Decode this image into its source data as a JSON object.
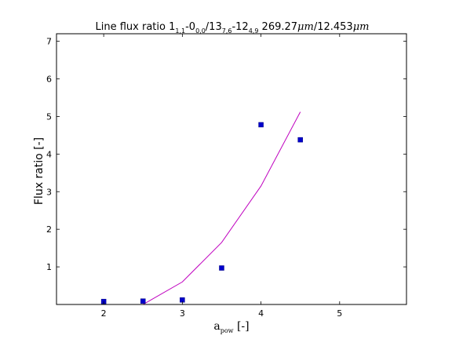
{
  "chart_data": {
    "type": "scatter",
    "title": {
      "prefix": "Line flux ratio 1",
      "sub1": "1,1",
      "mid1": "-0",
      "sub2": "0,0",
      "mid2": "/13",
      "sub3": "7,6",
      "mid3": "-12",
      "sub4": "4,9",
      "wl1_value": " 269.27",
      "wl1_unit": "μm",
      "slash": "/12.453",
      "wl2_unit": "μm"
    },
    "xlabel": {
      "main": "a",
      "sub": "pow",
      "unit": " [-]"
    },
    "ylabel": "Flux ratio [-]",
    "xlim": [
      1.4,
      5.85
    ],
    "ylim": [
      0.0,
      7.2
    ],
    "xticks": [
      2,
      3,
      4,
      5
    ],
    "xtick_labels": [
      "2",
      "3",
      "4",
      "5"
    ],
    "yticks": [
      1,
      2,
      3,
      4,
      5,
      6,
      7
    ],
    "ytick_labels": [
      "1",
      "2",
      "3",
      "4",
      "5",
      "6",
      "7"
    ],
    "grid": false,
    "series": [
      {
        "kind": "markers",
        "marker": "square",
        "color": "#0000cc",
        "x": [
          2.0,
          2.5,
          3.0,
          3.5,
          4.0,
          4.5
        ],
        "y": [
          0.08,
          0.09,
          0.12,
          0.97,
          4.78,
          4.38
        ]
      },
      {
        "kind": "line",
        "color": "#bf00bf",
        "x": [
          2.5,
          3.0,
          3.5,
          4.0,
          4.5
        ],
        "y": [
          0.0,
          0.6,
          1.65,
          3.15,
          5.12
        ]
      }
    ]
  }
}
